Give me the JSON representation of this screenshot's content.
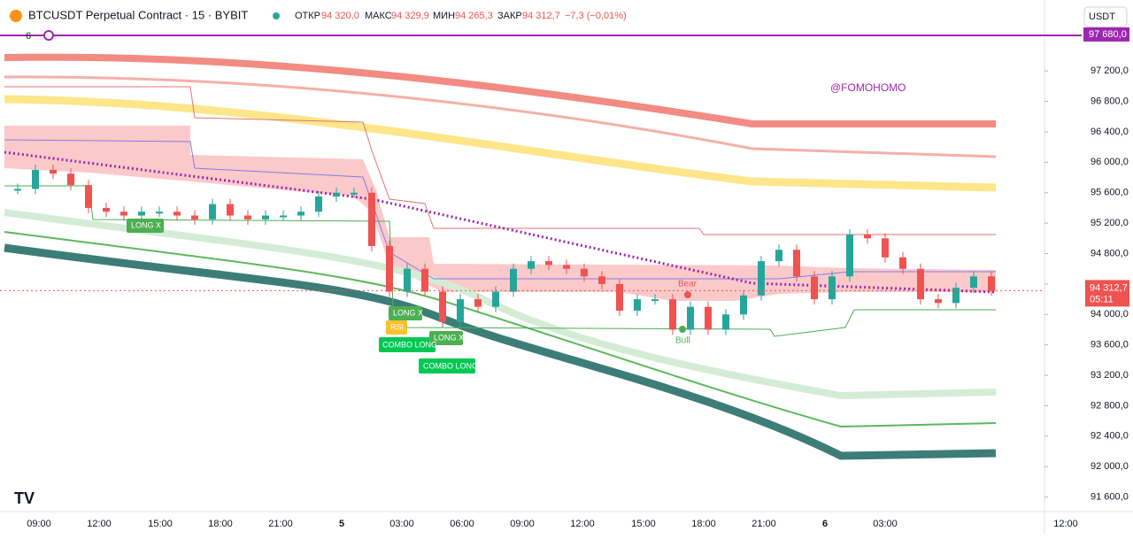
{
  "header": {
    "symbol": "BTCUSDT Perpetual Contract · 15 · BYBIT",
    "open_label": "ОТКР",
    "open": "94 320,0",
    "high_label": "МАКС",
    "high": "94 329,9",
    "low_label": "МИН",
    "low": "94 265,3",
    "close_label": "ЗАКР",
    "close": "94 312,7",
    "change": "−7,3 (−0,01%)",
    "currency": "USDT",
    "indicator_count": "6"
  },
  "chart_data": {
    "type": "candlestick",
    "ylim": [
      91200,
      97900
    ],
    "yticks": [
      {
        "value": 97200,
        "label": "97 200,0"
      },
      {
        "value": 96800,
        "label": "96 800,0"
      },
      {
        "value": 96400,
        "label": "96 400,0"
      },
      {
        "value": 96000,
        "label": "96 000,0"
      },
      {
        "value": 95600,
        "label": "95 600,0"
      },
      {
        "value": 95200,
        "label": "95 200,0"
      },
      {
        "value": 94800,
        "label": "94 800,0"
      },
      {
        "value": 94400,
        "label": "94 400,0"
      },
      {
        "value": 94000,
        "label": "94 000,0"
      },
      {
        "value": 93600,
        "label": "93 600,0"
      },
      {
        "value": 93200,
        "label": "93 200,0"
      },
      {
        "value": 92800,
        "label": "92 800,0"
      },
      {
        "value": 92400,
        "label": "92 400,0"
      },
      {
        "value": 92000,
        "label": "92 000,0"
      },
      {
        "value": 91600,
        "label": "91 600,0"
      }
    ],
    "level": {
      "value": 97680,
      "label": "97 680,0"
    },
    "last": {
      "value": 94312.7,
      "label": "94 312,7",
      "countdown": "05:11"
    },
    "close": [
      95650,
      95900,
      95850,
      95700,
      95400,
      95350,
      95300,
      95350,
      95350,
      95300,
      95250,
      95450,
      95300,
      95250,
      95300,
      95300,
      95350,
      95550,
      95600,
      95600,
      94900,
      94300,
      94600,
      94300,
      93900,
      94200,
      94100,
      94300,
      94600,
      94700,
      94650,
      94600,
      94500,
      94400,
      94050,
      94200,
      94200,
      93800,
      94100,
      93800,
      94000,
      94250,
      94700,
      94850,
      94500,
      94200,
      94500,
      95050,
      95000,
      94750,
      94600,
      94200,
      94150,
      94350,
      94500,
      94312.7
    ],
    "time_labels": [
      "09:00",
      "12:00",
      "15:00",
      "18:00",
      "21:00",
      "5",
      "03:00",
      "06:00",
      "09:00",
      "12:00",
      "15:00",
      "18:00",
      "21:00",
      "6",
      "03:00",
      "12:00"
    ],
    "watermark": "@FOMOHOMO",
    "annotations": [
      "LONG X",
      "LONG X",
      "RSI",
      "COMBO LONG",
      "LONG X",
      "COMBO LONG",
      "Bear",
      "Bull"
    ]
  }
}
